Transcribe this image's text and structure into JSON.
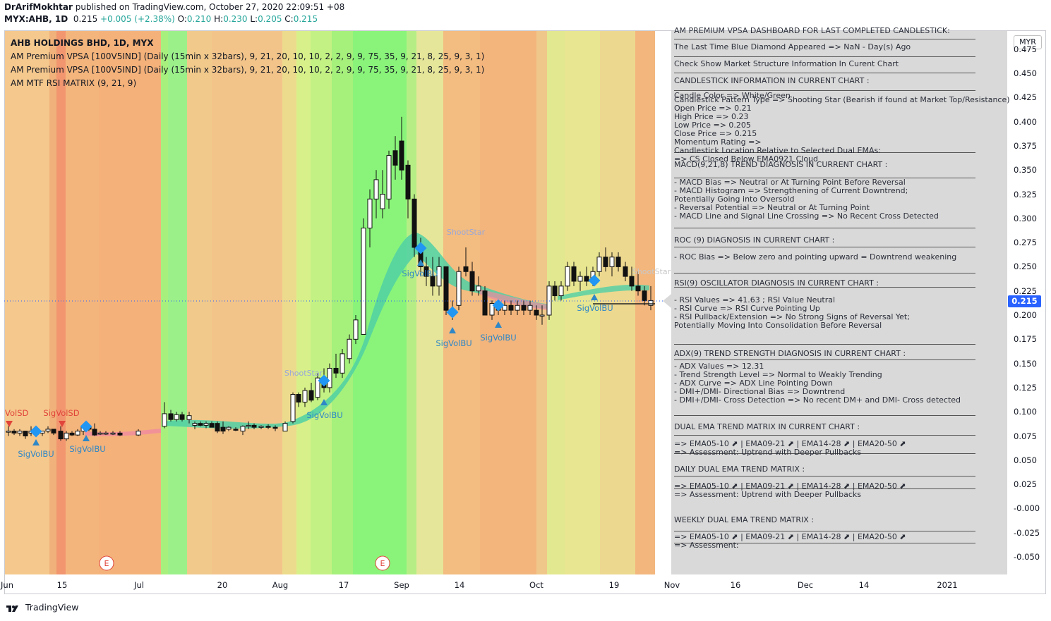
{
  "header": {
    "author": "DrArifMokhtar",
    "published_text": "published on TradingView.com, October 27, 2020 22:09:51 +08",
    "symbol_line": "MYX:AHB, 1D",
    "last": "0.215",
    "change": "+0.005 (+2.38%)",
    "o_label": "O:",
    "o": "0.210",
    "h_label": "H:",
    "h": "0.230",
    "l_label": "L:",
    "l": "0.205",
    "c_label": "C:",
    "c": "0.215"
  },
  "legend": [
    "AHB HOLDINGS BHD, 1D, MYX",
    "AM Premium VPSA [100V5IND] (Daily (15min x 32bars), 9, 21, 20, 10, 10, 2, 2, 9, 9, 75, 35, 9, 21, 8, 25, 9, 3, 1)",
    "AM Premium VPSA [100V5IND] (Daily (15min x 32bars), 9, 21, 20, 10, 10, 2, 2, 9, 9, 75, 35, 9, 21, 8, 25, 9, 3, 1)",
    "AM MTF RSI MATRIX (9, 21, 9)"
  ],
  "dashboard": {
    "top_cut": "AM PREMIUM VPSA DASHBOARD FOR LAST COMPLETED CANDLESTICK:",
    "lines": [
      "The Last Time Blue Diamond Appeared => NaN - Day(s) Ago",
      "Check Show Market Structure Information In Curent Chart",
      "CANDLESTICK INFORMATION IN CURRENT CHART :",
      "Candle Color => White/Green",
      "Candlestick Pattern Type => Shooting Star (Bearish if found at Market Top/Resistance)",
      "Open Price => 0.21",
      "High Price => 0.23",
      "Low Price => 0.205",
      "Close Price => 0.215",
      "Momentum Rating =>",
      "Candlestick Location Relative to Selected Dual EMAs:",
      " => CS Closed Below EMA0921 Cloud",
      "MACD(9,21,8) TREND DIAGNOSIS IN CURRENT CHART :",
      " - MACD Bias => Neutral or At Turning Point Before Reversal",
      " - MACD Histogram => Strengthening of Current Downtrend;",
      "   Potentially Going into Oversold",
      " - Reversal Potential => Neutral or At Turning Point",
      " - MACD Line and Signal Line Crossing => No Recent Cross Detected",
      "ROC (9) DIAGNOSIS IN CURRENT CHART :",
      " - ROC Bias => Below zero and pointing upward = Downtrend weakening",
      "RSI(9) OSCILLATOR DIAGNOSIS IN CURRENT CHART :",
      " - RSI Values => 41.63 ; RSI Value Neutral",
      " - RSI Curve => RSI Curve Pointing Up",
      " - RSI Pullback/Extension => No Strong Signs of Reversal Yet;",
      "   Potentially Moving Into Consolidation Before Reversal",
      "ADX(9) TREND STRENGTH DIAGNOSIS IN CURRENT CHART :",
      " - ADX Values => 12.31",
      " - Trend Strength Level => Normal to Weakly Trending",
      " - ADX Curve => ADX Line Pointing Down",
      " - DMI+/DMI- Directional Bias => Downtrend",
      " - DMI+/DMI- Cross Detection => No recent DM+ and DMI- Cross detected",
      "DUAL EMA TREND MATRIX IN CURRENT CHART :",
      " => EMA05-10 ⬈ | EMA09-21 ⬈ | EMA14-28 ⬈ | EMA20-50 ⬈",
      " => Assessment: Uptrend with Deeper Pullbacks",
      "DAILY DUAL EMA TREND MATRIX :",
      " => EMA05-10 ⬈ | EMA09-21 ⬈ | EMA14-28 ⬈ | EMA20-50 ⬈",
      " => Assessment: Uptrend with Deeper Pullbacks",
      "WEEKLY DUAL EMA TREND MATRIX :",
      " => EMA05-10 ⬈ | EMA09-21 ⬈ | EMA14-28 ⬈ | EMA20-50 ⬈",
      " => Assessment:"
    ]
  },
  "price_axis": {
    "currency": "MYR",
    "ticks": [
      "0.475",
      "0.450",
      "0.425",
      "0.400",
      "0.375",
      "0.350",
      "0.325",
      "0.300",
      "0.275",
      "0.250",
      "0.225",
      "0.200",
      "0.175",
      "0.150",
      "0.125",
      "0.100",
      "0.075",
      "0.050",
      "0.025",
      "-0.000",
      "-0.025",
      "-0.050"
    ],
    "current": "0.215"
  },
  "time_axis": {
    "ticks": [
      "Jun",
      "15",
      "Jul",
      "20",
      "Aug",
      "17",
      "Sep",
      "14",
      "Oct",
      "19",
      "Nov",
      "16",
      "Dec",
      "14",
      "2021"
    ]
  },
  "signals": {
    "sigvolbu": "SigVolBU",
    "sigvolsd": "SigVolSD",
    "volsd": "VolSD",
    "shootstar": "ShootStar",
    "earnings": "E"
  },
  "footer": {
    "brand": "TradingView"
  },
  "colors": {
    "up_text": "#26a69a",
    "blue_diamond": "#2196f3",
    "bg_green": "#8af47a",
    "bg_orange": "#f5c38b",
    "price_line": "#2962ff"
  },
  "chart_data": {
    "type": "candlestick",
    "ylim": [
      -0.06,
      0.48
    ],
    "candles": [
      [
        0.08,
        0.085,
        0.075,
        0.08
      ],
      [
        0.08,
        0.085,
        0.075,
        0.08
      ],
      [
        0.08,
        0.085,
        0.075,
        0.08
      ],
      [
        0.08,
        0.085,
        0.075,
        0.08
      ],
      [
        0.08,
        0.085,
        0.075,
        0.08
      ],
      [
        0.08,
        0.085,
        0.075,
        0.08
      ],
      [
        0.08,
        0.085,
        0.075,
        0.08
      ],
      [
        0.08,
        0.085,
        0.075,
        0.08
      ],
      [
        0.08,
        0.085,
        0.075,
        0.08
      ],
      [
        0.08,
        0.085,
        0.075,
        0.08
      ],
      [
        0.08,
        0.085,
        0.075,
        0.08
      ],
      [
        0.08,
        0.085,
        0.075,
        0.08
      ],
      [
        0.08,
        0.085,
        0.075,
        0.08
      ],
      [
        0.08,
        0.085,
        0.075,
        0.08
      ],
      [
        0.08,
        0.085,
        0.075,
        0.08
      ],
      [
        0.08,
        0.085,
        0.075,
        0.08
      ],
      [
        0.08,
        0.085,
        0.075,
        0.08
      ],
      [
        0.08,
        0.085,
        0.075,
        0.08
      ],
      [
        0.08,
        0.085,
        0.075,
        0.08
      ],
      [
        0.08,
        0.085,
        0.075,
        0.08
      ]
    ]
  }
}
